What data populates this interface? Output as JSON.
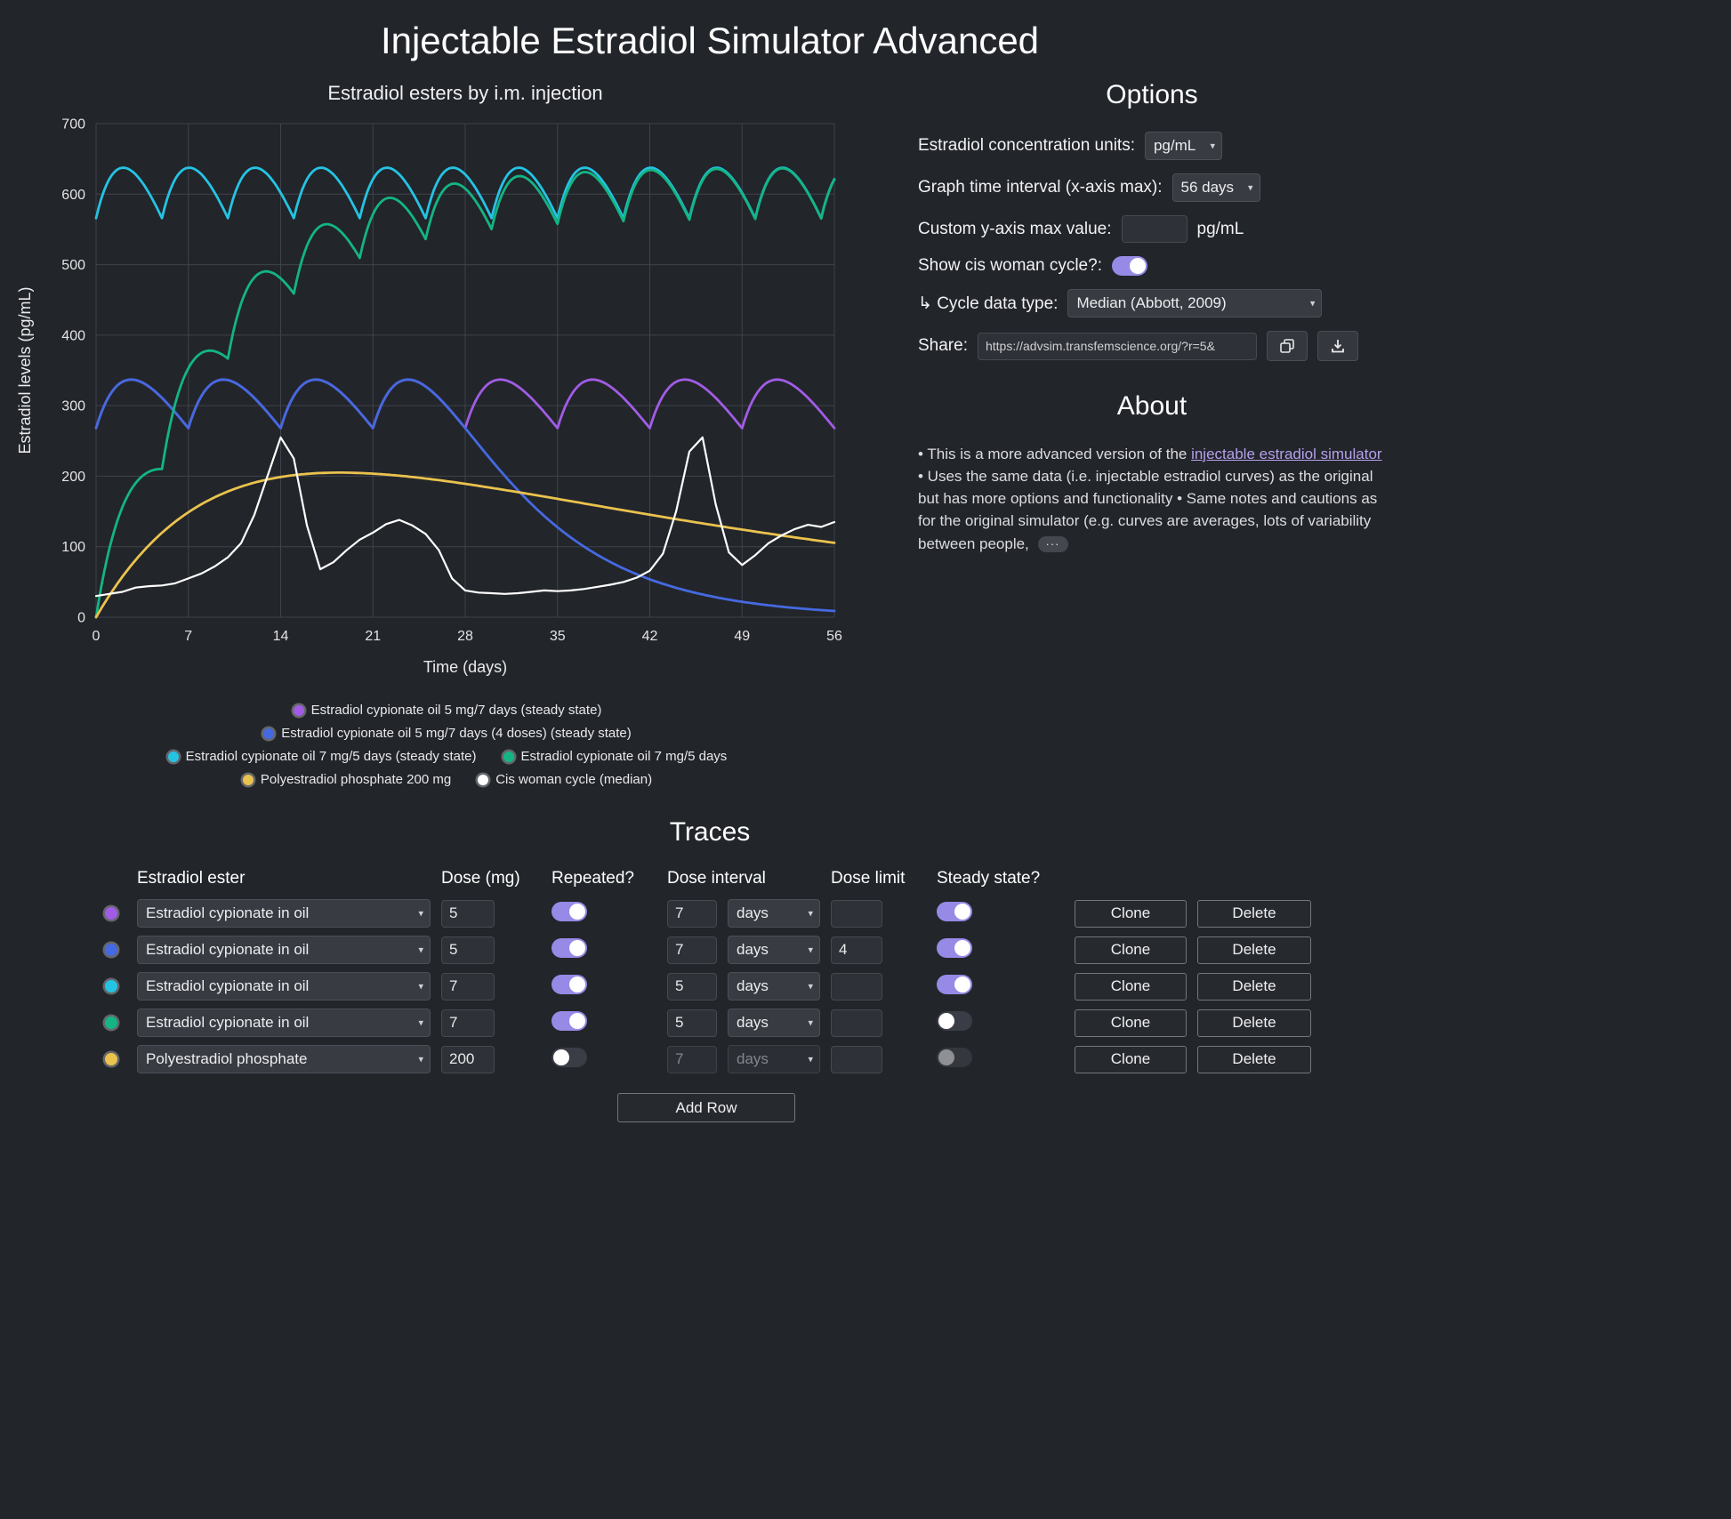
{
  "page": {
    "title": "Injectable Estradiol Simulator Advanced"
  },
  "options": {
    "heading": "Options",
    "units_label": "Estradiol concentration units:",
    "units_value": "pg/mL",
    "interval_label": "Graph time interval (x-axis max):",
    "interval_value": "56 days",
    "ymax_label": "Custom y-axis max value:",
    "ymax_value": "",
    "ymax_unit": "pg/mL",
    "cycle_toggle_label": "Show cis woman cycle?:",
    "cycle_toggle_on": true,
    "cycle_type_label": "↳ Cycle data type:",
    "cycle_type_value": "Median (Abbott, 2009)",
    "share_label": "Share:",
    "share_url": "https://advsim.transfemscience.org/?r=5&"
  },
  "about": {
    "heading": "About",
    "text_before_link": "• This is a more advanced version of the ",
    "link_text": "injectable estradiol simulator",
    "text_after_link": " • Uses the same data (i.e. injectable estradiol curves) as the original but has more options and functionality • Same notes and cautions as for the original simulator (e.g. curves are averages, lots of variability between people, ",
    "more_label": "···"
  },
  "traces": {
    "heading": "Traces",
    "headers": {
      "ester": "Estradiol ester",
      "dose": "Dose (mg)",
      "repeated": "Repeated?",
      "interval": "Dose interval",
      "limit": "Dose limit",
      "steady": "Steady state?"
    },
    "clone_label": "Clone",
    "delete_label": "Delete",
    "add_row_label": "Add Row",
    "rows": [
      {
        "color": "#a15ce5",
        "ester": "Estradiol cypionate in oil",
        "dose": "5",
        "repeated": true,
        "interval": "7",
        "interval_unit": "days",
        "limit": "",
        "steady": true,
        "interval_disabled": false,
        "steady_disabled": false
      },
      {
        "color": "#4569e0",
        "ester": "Estradiol cypionate in oil",
        "dose": "5",
        "repeated": true,
        "interval": "7",
        "interval_unit": "days",
        "limit": "4",
        "steady": true,
        "interval_disabled": false,
        "steady_disabled": false
      },
      {
        "color": "#25c3e3",
        "ester": "Estradiol cypionate in oil",
        "dose": "7",
        "repeated": true,
        "interval": "5",
        "interval_unit": "days",
        "limit": "",
        "steady": true,
        "interval_disabled": false,
        "steady_disabled": false
      },
      {
        "color": "#13b584",
        "ester": "Estradiol cypionate in oil",
        "dose": "7",
        "repeated": true,
        "interval": "5",
        "interval_unit": "days",
        "limit": "",
        "steady": false,
        "interval_disabled": false,
        "steady_disabled": false
      },
      {
        "color": "#eac24e",
        "ester": "Polyestradiol phosphate",
        "dose": "200",
        "repeated": false,
        "interval": "7",
        "interval_unit": "days",
        "limit": "",
        "steady": false,
        "interval_disabled": true,
        "steady_disabled": true
      }
    ]
  },
  "chart_data": {
    "type": "line",
    "title": "Estradiol esters by i.m. injection",
    "xlabel": "Time (days)",
    "ylabel": "Estradiol levels (pg/mL)",
    "xlim": [
      0,
      56
    ],
    "ylim": [
      0,
      700
    ],
    "xticks": [
      0,
      7,
      14,
      21,
      28,
      35,
      42,
      49,
      56
    ],
    "yticks": [
      0,
      100,
      200,
      300,
      400,
      500,
      600,
      700
    ],
    "grid": true,
    "legend_position": "bottom",
    "legend_rows": [
      [
        0
      ],
      [
        1
      ],
      [
        2,
        3
      ],
      [
        4,
        5
      ]
    ],
    "series": [
      {
        "name": "Estradiol cypionate oil 5 mg/7 days (steady state)",
        "color": "#a15ce5",
        "model": {
          "kind": "pk",
          "scale": 502,
          "ka": 0.3,
          "ke": 0.13,
          "interval": 7,
          "steady_state": true
        }
      },
      {
        "name": "Estradiol cypionate oil 5 mg/7 days (4 doses) (steady state)",
        "color": "#4569e0",
        "model": {
          "kind": "pk",
          "scale": 502,
          "ka": 0.3,
          "ke": 0.13,
          "interval": 7,
          "steady_state": true,
          "last_dose": 21
        }
      },
      {
        "name": "Estradiol cypionate oil 7 mg/5 days (steady state)",
        "color": "#25c3e3",
        "model": {
          "kind": "pk",
          "scale": 703,
          "ka": 0.3,
          "ke": 0.13,
          "interval": 5,
          "steady_state": true
        }
      },
      {
        "name": "Estradiol cypionate oil 7 mg/5 days",
        "color": "#13b584",
        "model": {
          "kind": "pk",
          "scale": 703,
          "ka": 0.3,
          "ke": 0.13,
          "interval": 5,
          "steady_state": false
        }
      },
      {
        "name": "Polyestradiol phosphate 200 mg",
        "color": "#eac24e",
        "model": {
          "kind": "pk",
          "scale": 434,
          "ka": 0.1,
          "ke": 0.025,
          "single": true
        }
      },
      {
        "name": "Cis woman cycle (median)",
        "color": "#ffffff",
        "model": {
          "kind": "points",
          "x_start": 0,
          "x_step": 1
        },
        "y": [
          30,
          33,
          36,
          42,
          44,
          45,
          48,
          55,
          62,
          72,
          85,
          105,
          145,
          200,
          255,
          225,
          130,
          68,
          78,
          95,
          110,
          120,
          132,
          138,
          130,
          118,
          95,
          55,
          38,
          35,
          34,
          33,
          34,
          36,
          38,
          37,
          38,
          40,
          43,
          46,
          50,
          56,
          66,
          90,
          150,
          235,
          255,
          160,
          92,
          74,
          88,
          105,
          116,
          125,
          131,
          128,
          135
        ]
      }
    ]
  }
}
